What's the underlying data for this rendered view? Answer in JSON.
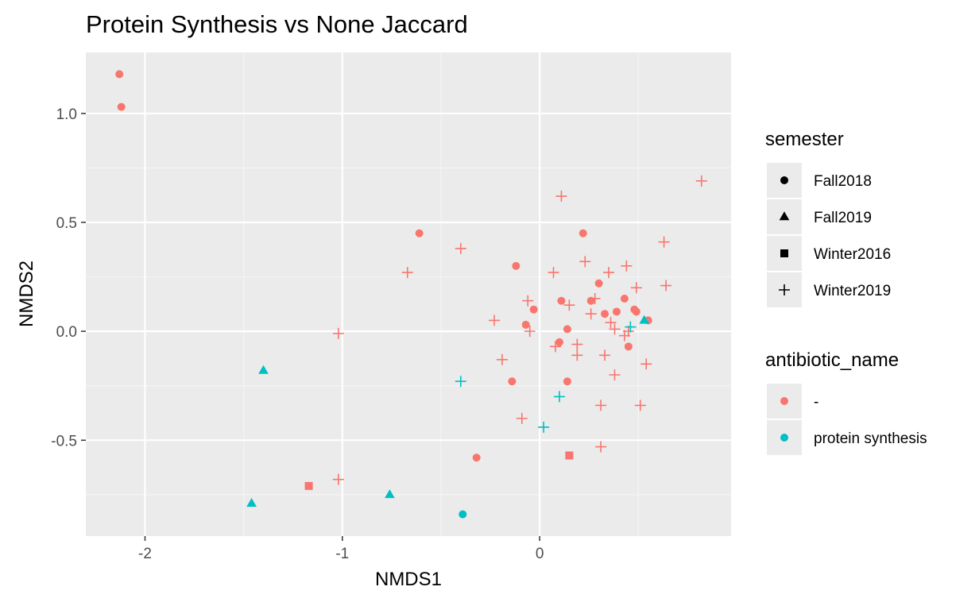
{
  "chart_data": {
    "type": "scatter",
    "title": "Protein Synthesis vs None Jaccard",
    "xlabel": "NMDS1",
    "ylabel": "NMDS2",
    "xlim": [
      -2.3,
      0.97
    ],
    "ylim": [
      -0.94,
      1.28
    ],
    "x_ticks": [
      -2,
      -1,
      0
    ],
    "x_tick_labels": [
      "-2",
      "-1",
      "0"
    ],
    "y_ticks": [
      -0.5,
      0.0,
      0.5,
      1.0
    ],
    "y_tick_labels": [
      "-0.5",
      "0.0",
      "0.5",
      "1.0"
    ],
    "grid": true,
    "legend_position": "right",
    "colors": {
      "panel_background": "#ebebeb",
      "grid_major": "#ffffff",
      "grid_minor": "#f4f4f4",
      "none": "#f8766d",
      "protein_synthesis": "#00bfc4"
    },
    "legends": [
      {
        "title": "semester",
        "entries": [
          {
            "label": "Fall2018",
            "shape": "circle"
          },
          {
            "label": "Fall2019",
            "shape": "triangle"
          },
          {
            "label": "Winter2016",
            "shape": "square"
          },
          {
            "label": "Winter2019",
            "shape": "plus"
          }
        ]
      },
      {
        "title": "antibiotic_name",
        "entries": [
          {
            "label": "-",
            "color": "#f8766d"
          },
          {
            "label": "protein synthesis",
            "color": "#00bfc4"
          }
        ]
      }
    ],
    "series": [
      {
        "semester": "Fall2018",
        "antibiotic_name": "-",
        "shape": "circle",
        "color": "#f8766d",
        "points": [
          [
            -2.13,
            1.18
          ],
          [
            -2.12,
            1.03
          ],
          [
            -0.61,
            0.45
          ],
          [
            -0.12,
            0.3
          ],
          [
            -0.03,
            0.1
          ],
          [
            -0.07,
            0.03
          ],
          [
            -0.14,
            -0.23
          ],
          [
            -0.32,
            -0.58
          ],
          [
            0.1,
            -0.05
          ],
          [
            0.11,
            0.14
          ],
          [
            0.14,
            0.01
          ],
          [
            0.14,
            -0.23
          ],
          [
            0.22,
            0.45
          ],
          [
            0.26,
            0.14
          ],
          [
            0.3,
            0.22
          ],
          [
            0.33,
            0.08
          ],
          [
            0.39,
            0.09
          ],
          [
            0.43,
            0.15
          ],
          [
            0.45,
            -0.07
          ],
          [
            0.48,
            0.1
          ],
          [
            0.49,
            0.09
          ],
          [
            0.55,
            0.05
          ]
        ]
      },
      {
        "semester": "Fall2018",
        "antibiotic_name": "protein synthesis",
        "shape": "circle",
        "color": "#00bfc4",
        "points": [
          [
            -0.39,
            -0.84
          ]
        ]
      },
      {
        "semester": "Fall2019",
        "antibiotic_name": "protein synthesis",
        "shape": "triangle",
        "color": "#00bfc4",
        "points": [
          [
            -1.4,
            -0.18
          ],
          [
            -1.46,
            -0.79
          ],
          [
            -0.76,
            -0.75
          ],
          [
            0.53,
            0.05
          ]
        ]
      },
      {
        "semester": "Winter2016",
        "antibiotic_name": "-",
        "shape": "square",
        "color": "#f8766d",
        "points": [
          [
            -1.17,
            -0.71
          ],
          [
            0.15,
            -0.57
          ]
        ]
      },
      {
        "semester": "Winter2019",
        "antibiotic_name": "-",
        "shape": "plus",
        "color": "#f8766d",
        "points": [
          [
            -1.02,
            -0.01
          ],
          [
            -1.02,
            -0.68
          ],
          [
            -0.67,
            0.27
          ],
          [
            -0.4,
            0.38
          ],
          [
            -0.23,
            0.05
          ],
          [
            -0.19,
            -0.13
          ],
          [
            -0.09,
            -0.4
          ],
          [
            -0.06,
            0.14
          ],
          [
            -0.05,
            0.0
          ],
          [
            0.07,
            0.27
          ],
          [
            0.08,
            -0.07
          ],
          [
            0.11,
            0.62
          ],
          [
            0.15,
            0.12
          ],
          [
            0.19,
            -0.11
          ],
          [
            0.19,
            -0.06
          ],
          [
            0.23,
            0.32
          ],
          [
            0.26,
            0.08
          ],
          [
            0.28,
            0.15
          ],
          [
            0.31,
            -0.34
          ],
          [
            0.31,
            -0.53
          ],
          [
            0.33,
            -0.11
          ],
          [
            0.35,
            0.27
          ],
          [
            0.36,
            0.04
          ],
          [
            0.38,
            0.01
          ],
          [
            0.38,
            -0.2
          ],
          [
            0.43,
            -0.02
          ],
          [
            0.44,
            0.3
          ],
          [
            0.45,
            0.0
          ],
          [
            0.49,
            0.2
          ],
          [
            0.51,
            -0.34
          ],
          [
            0.54,
            -0.15
          ],
          [
            0.63,
            0.41
          ],
          [
            0.64,
            0.21
          ],
          [
            0.82,
            0.69
          ]
        ]
      },
      {
        "semester": "Winter2019",
        "antibiotic_name": "protein synthesis",
        "shape": "plus",
        "color": "#00bfc4",
        "points": [
          [
            -0.4,
            -0.23
          ],
          [
            0.1,
            -0.3
          ],
          [
            0.02,
            -0.44
          ],
          [
            0.46,
            0.02
          ]
        ]
      }
    ]
  }
}
